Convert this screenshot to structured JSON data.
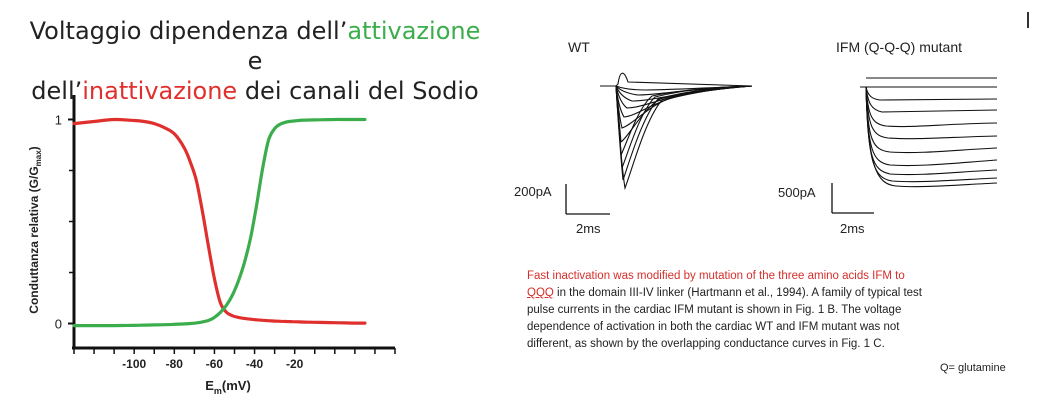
{
  "title": {
    "part1": "Voltaggio dipendenza dell’",
    "attivazione": "attivazione",
    "part2": " e",
    "part3": "dell’",
    "inattivazione": "inattivazione",
    "part4": " dei canali del Sodio"
  },
  "colors": {
    "activation": "#3cad4c",
    "inactivation": "#e0302e",
    "caption_highlight": "#d62f2b"
  },
  "left_chart": {
    "ylabel_main": "Conduttanza relativa (G/G",
    "ylabel_sub": "max",
    "ylabel_close": ")",
    "xlabel_main": "E",
    "xlabel_sub": "m",
    "xlabel_unit": "(mV)"
  },
  "chart_data": [
    {
      "type": "line",
      "xlabel": "Em(mV)",
      "ylabel": "Conduttanza relativa (G/Gmax)",
      "xlim": [
        -130,
        30
      ],
      "ylim": [
        -0.12,
        1.12
      ],
      "x_ticks": [
        -100,
        -80,
        -60,
        -40,
        -20
      ],
      "y_ticks": [
        0,
        1
      ],
      "grid": false,
      "x": [
        -130,
        -120,
        -110,
        -100,
        -95,
        -90,
        -85,
        -80,
        -75,
        -72,
        -69,
        -66,
        -63,
        -60,
        -57,
        -54,
        -51,
        -48,
        -45,
        -42,
        -39,
        -36,
        -33,
        -30,
        -27,
        -24,
        -21,
        -18,
        -15,
        -10,
        -5,
        0,
        5,
        10,
        15
      ],
      "series": [
        {
          "values": [
            0.98,
            0.99,
            1.0,
            0.995,
            0.99,
            0.98,
            0.96,
            0.93,
            0.86,
            0.79,
            0.7,
            0.55,
            0.38,
            0.22,
            0.1,
            0.055,
            0.038,
            0.03,
            0.025,
            0.021,
            0.018,
            0.016,
            0.014,
            0.012,
            0.011,
            0.01,
            0.009,
            0.008,
            0.007,
            0.006,
            0.005,
            0.004,
            0.003,
            0.002,
            0.002
          ]
        },
        {
          "values": [
            -0.01,
            -0.01,
            -0.01,
            -0.009,
            -0.008,
            -0.007,
            -0.006,
            -0.004,
            -0.002,
            0.0,
            0.003,
            0.008,
            0.015,
            0.03,
            0.055,
            0.09,
            0.14,
            0.21,
            0.3,
            0.42,
            0.58,
            0.76,
            0.9,
            0.955,
            0.978,
            0.988,
            0.992,
            0.995,
            0.997,
            0.998,
            0.999,
            1.0,
            1.0,
            1.0,
            1.0
          ]
        }
      ]
    }
  ],
  "traces": {
    "wt_label": "WT",
    "mutant_label": "IFM (Q-Q-Q) mutant",
    "wt_scale_current": "200pA",
    "wt_scale_time": "2ms",
    "mutant_scale_current": "500pA",
    "mutant_scale_time": "2ms"
  },
  "caption": {
    "red_line1": "Fast inactivation was modified by mutation of the three amino acids IFM to",
    "red_qqq": "QQQ",
    "line2_rest": " in the domain III-IV linker (Hartmann et al., 1994). A family of typical test",
    "line3": "pulse currents in the cardiac IFM mutant is shown in Fig. 1 B. The voltage",
    "line4": "dependence of activation in both the cardiac WT and IFM mutant was not",
    "line5": "different, as shown by the overlapping conductance curves in Fig. 1 C."
  },
  "footnote": "Q= glutamine"
}
